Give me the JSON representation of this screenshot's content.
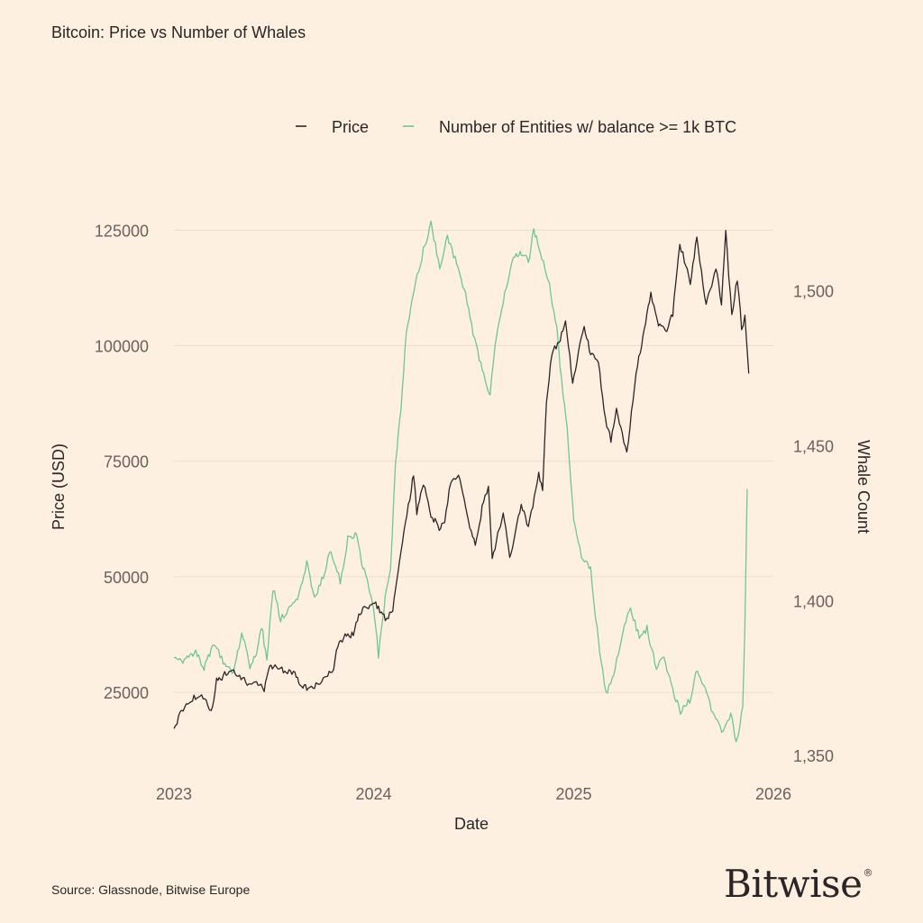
{
  "title": "Bitcoin: Price vs Number of Whales",
  "source": "Source: Glassnode, Bitwise Europe",
  "logo": {
    "text": "Bitwise",
    "mark": "®"
  },
  "colors": {
    "background": "#fdf0e1",
    "price": "#2b2527",
    "whales": "#6fc597",
    "grid": "#eadfcc"
  },
  "chart_data": {
    "type": "line",
    "title": "Bitcoin: Price vs Number of Whales",
    "xlabel": "Date",
    "ylabel": "Price (USD)",
    "y2label": "Whale Count",
    "grid": true,
    "legend_position": "top",
    "x_ticks": [
      "2023",
      "2024",
      "2025",
      "2026"
    ],
    "y_ticks": [
      25000,
      50000,
      75000,
      100000,
      125000
    ],
    "y2_ticks": [
      "1,350",
      "1,400",
      "1,450",
      "1,500"
    ],
    "y2_tick_values": [
      1350,
      1400,
      1450,
      1500
    ],
    "ylim": [
      10000,
      128000
    ],
    "y2lim": [
      1348,
      1524
    ],
    "xlim": [
      "2023-01-01",
      "2026-01-01"
    ],
    "series": [
      {
        "name": "Price",
        "axis": "left",
        "points": [
          [
            "2023-01-01",
            16600
          ],
          [
            "2023-01-15",
            21000
          ],
          [
            "2023-02-01",
            23500
          ],
          [
            "2023-02-15",
            24500
          ],
          [
            "2023-03-01",
            23500
          ],
          [
            "2023-03-10",
            20500
          ],
          [
            "2023-03-20",
            27500
          ],
          [
            "2023-04-01",
            28500
          ],
          [
            "2023-04-15",
            30000
          ],
          [
            "2023-05-01",
            28500
          ],
          [
            "2023-05-15",
            27000
          ],
          [
            "2023-06-01",
            27000
          ],
          [
            "2023-06-15",
            25500
          ],
          [
            "2023-06-25",
            30500
          ],
          [
            "2023-07-10",
            30500
          ],
          [
            "2023-07-25",
            29500
          ],
          [
            "2023-08-10",
            29500
          ],
          [
            "2023-08-20",
            26500
          ],
          [
            "2023-09-01",
            26000
          ],
          [
            "2023-09-15",
            26500
          ],
          [
            "2023-10-01",
            27500
          ],
          [
            "2023-10-20",
            30000
          ],
          [
            "2023-10-25",
            34500
          ],
          [
            "2023-11-10",
            37000
          ],
          [
            "2023-11-25",
            37500
          ],
          [
            "2023-12-05",
            42000
          ],
          [
            "2023-12-20",
            43500
          ],
          [
            "2024-01-05",
            44000
          ],
          [
            "2024-01-15",
            42500
          ],
          [
            "2024-01-25",
            40500
          ],
          [
            "2024-02-05",
            43000
          ],
          [
            "2024-02-15",
            51000
          ],
          [
            "2024-02-28",
            62000
          ],
          [
            "2024-03-10",
            69000
          ],
          [
            "2024-03-14",
            72500
          ],
          [
            "2024-03-20",
            64000
          ],
          [
            "2024-04-01",
            70000
          ],
          [
            "2024-04-15",
            63500
          ],
          [
            "2024-04-30",
            60500
          ],
          [
            "2024-05-10",
            62000
          ],
          [
            "2024-05-21",
            70500
          ],
          [
            "2024-06-07",
            71500
          ],
          [
            "2024-06-25",
            61000
          ],
          [
            "2024-07-05",
            56500
          ],
          [
            "2024-07-20",
            66500
          ],
          [
            "2024-07-29",
            69000
          ],
          [
            "2024-08-05",
            54000
          ],
          [
            "2024-08-25",
            64000
          ],
          [
            "2024-09-06",
            54000
          ],
          [
            "2024-09-27",
            66000
          ],
          [
            "2024-10-10",
            60500
          ],
          [
            "2024-10-29",
            72500
          ],
          [
            "2024-11-05",
            68500
          ],
          [
            "2024-11-12",
            88000
          ],
          [
            "2024-11-22",
            98500
          ],
          [
            "2024-12-05",
            100500
          ],
          [
            "2024-12-17",
            106000
          ],
          [
            "2024-12-30",
            92000
          ],
          [
            "2025-01-20",
            104500
          ],
          [
            "2025-02-01",
            98000
          ],
          [
            "2025-02-15",
            96500
          ],
          [
            "2025-02-28",
            84000
          ],
          [
            "2025-03-10",
            79500
          ],
          [
            "2025-03-20",
            86000
          ],
          [
            "2025-04-08",
            76500
          ],
          [
            "2025-04-25",
            94000
          ],
          [
            "2025-05-10",
            103500
          ],
          [
            "2025-05-22",
            111000
          ],
          [
            "2025-06-05",
            104500
          ],
          [
            "2025-06-20",
            103500
          ],
          [
            "2025-07-01",
            107000
          ],
          [
            "2025-07-14",
            122000
          ],
          [
            "2025-07-25",
            117500
          ],
          [
            "2025-08-02",
            113500
          ],
          [
            "2025-08-14",
            123500
          ],
          [
            "2025-08-31",
            108500
          ],
          [
            "2025-09-18",
            117000
          ],
          [
            "2025-09-28",
            109500
          ],
          [
            "2025-10-06",
            124500
          ],
          [
            "2025-10-17",
            106500
          ],
          [
            "2025-10-27",
            114500
          ],
          [
            "2025-11-04",
            104000
          ],
          [
            "2025-11-10",
            106000
          ],
          [
            "2025-11-17",
            94000
          ]
        ]
      },
      {
        "name": "Number of Entities w/ balance >= 1k BTC",
        "axis": "right",
        "points": [
          [
            "2023-01-01",
            1382
          ],
          [
            "2023-01-20",
            1380
          ],
          [
            "2023-02-10",
            1384
          ],
          [
            "2023-02-25",
            1378
          ],
          [
            "2023-03-15",
            1386
          ],
          [
            "2023-04-01",
            1380
          ],
          [
            "2023-04-20",
            1376
          ],
          [
            "2023-05-05",
            1390
          ],
          [
            "2023-05-20",
            1378
          ],
          [
            "2023-06-01",
            1383
          ],
          [
            "2023-06-10",
            1392
          ],
          [
            "2023-06-20",
            1381
          ],
          [
            "2023-07-01",
            1404
          ],
          [
            "2023-07-15",
            1394
          ],
          [
            "2023-08-01",
            1398
          ],
          [
            "2023-08-15",
            1401
          ],
          [
            "2023-09-01",
            1412
          ],
          [
            "2023-09-15",
            1401
          ],
          [
            "2023-10-01",
            1408
          ],
          [
            "2023-10-15",
            1416
          ],
          [
            "2023-11-01",
            1406
          ],
          [
            "2023-11-15",
            1420
          ],
          [
            "2023-12-01",
            1422
          ],
          [
            "2023-12-10",
            1413
          ],
          [
            "2023-12-20",
            1406
          ],
          [
            "2024-01-01",
            1398
          ],
          [
            "2024-01-10",
            1382
          ],
          [
            "2024-01-20",
            1398
          ],
          [
            "2024-02-01",
            1410
          ],
          [
            "2024-02-10",
            1445
          ],
          [
            "2024-02-20",
            1462
          ],
          [
            "2024-03-01",
            1487
          ],
          [
            "2024-03-15",
            1500
          ],
          [
            "2024-04-01",
            1513
          ],
          [
            "2024-04-15",
            1522
          ],
          [
            "2024-05-01",
            1508
          ],
          [
            "2024-05-15",
            1517
          ],
          [
            "2024-06-01",
            1509
          ],
          [
            "2024-06-20",
            1497
          ],
          [
            "2024-07-01",
            1486
          ],
          [
            "2024-07-15",
            1476
          ],
          [
            "2024-08-01",
            1466
          ],
          [
            "2024-08-10",
            1483
          ],
          [
            "2024-08-25",
            1497
          ],
          [
            "2024-09-10",
            1509
          ],
          [
            "2024-09-25",
            1513
          ],
          [
            "2024-10-10",
            1509
          ],
          [
            "2024-10-20",
            1520
          ],
          [
            "2024-11-01",
            1512
          ],
          [
            "2024-11-15",
            1504
          ],
          [
            "2024-12-01",
            1488
          ],
          [
            "2024-12-10",
            1470
          ],
          [
            "2024-12-20",
            1455
          ],
          [
            "2025-01-01",
            1425
          ],
          [
            "2025-01-15",
            1415
          ],
          [
            "2025-02-01",
            1410
          ],
          [
            "2025-02-10",
            1395
          ],
          [
            "2025-02-20",
            1380
          ],
          [
            "2025-03-01",
            1370
          ],
          [
            "2025-03-15",
            1376
          ],
          [
            "2025-04-01",
            1390
          ],
          [
            "2025-04-15",
            1398
          ],
          [
            "2025-05-01",
            1388
          ],
          [
            "2025-05-15",
            1391
          ],
          [
            "2025-06-01",
            1378
          ],
          [
            "2025-06-15",
            1382
          ],
          [
            "2025-07-01",
            1371
          ],
          [
            "2025-07-15",
            1364
          ],
          [
            "2025-08-01",
            1368
          ],
          [
            "2025-08-15",
            1378
          ],
          [
            "2025-09-01",
            1370
          ],
          [
            "2025-09-15",
            1362
          ],
          [
            "2025-10-01",
            1358
          ],
          [
            "2025-10-15",
            1363
          ],
          [
            "2025-10-25",
            1355
          ],
          [
            "2025-11-01",
            1359
          ],
          [
            "2025-11-06",
            1366
          ],
          [
            "2025-11-10",
            1392
          ],
          [
            "2025-11-14",
            1436
          ]
        ]
      }
    ]
  }
}
